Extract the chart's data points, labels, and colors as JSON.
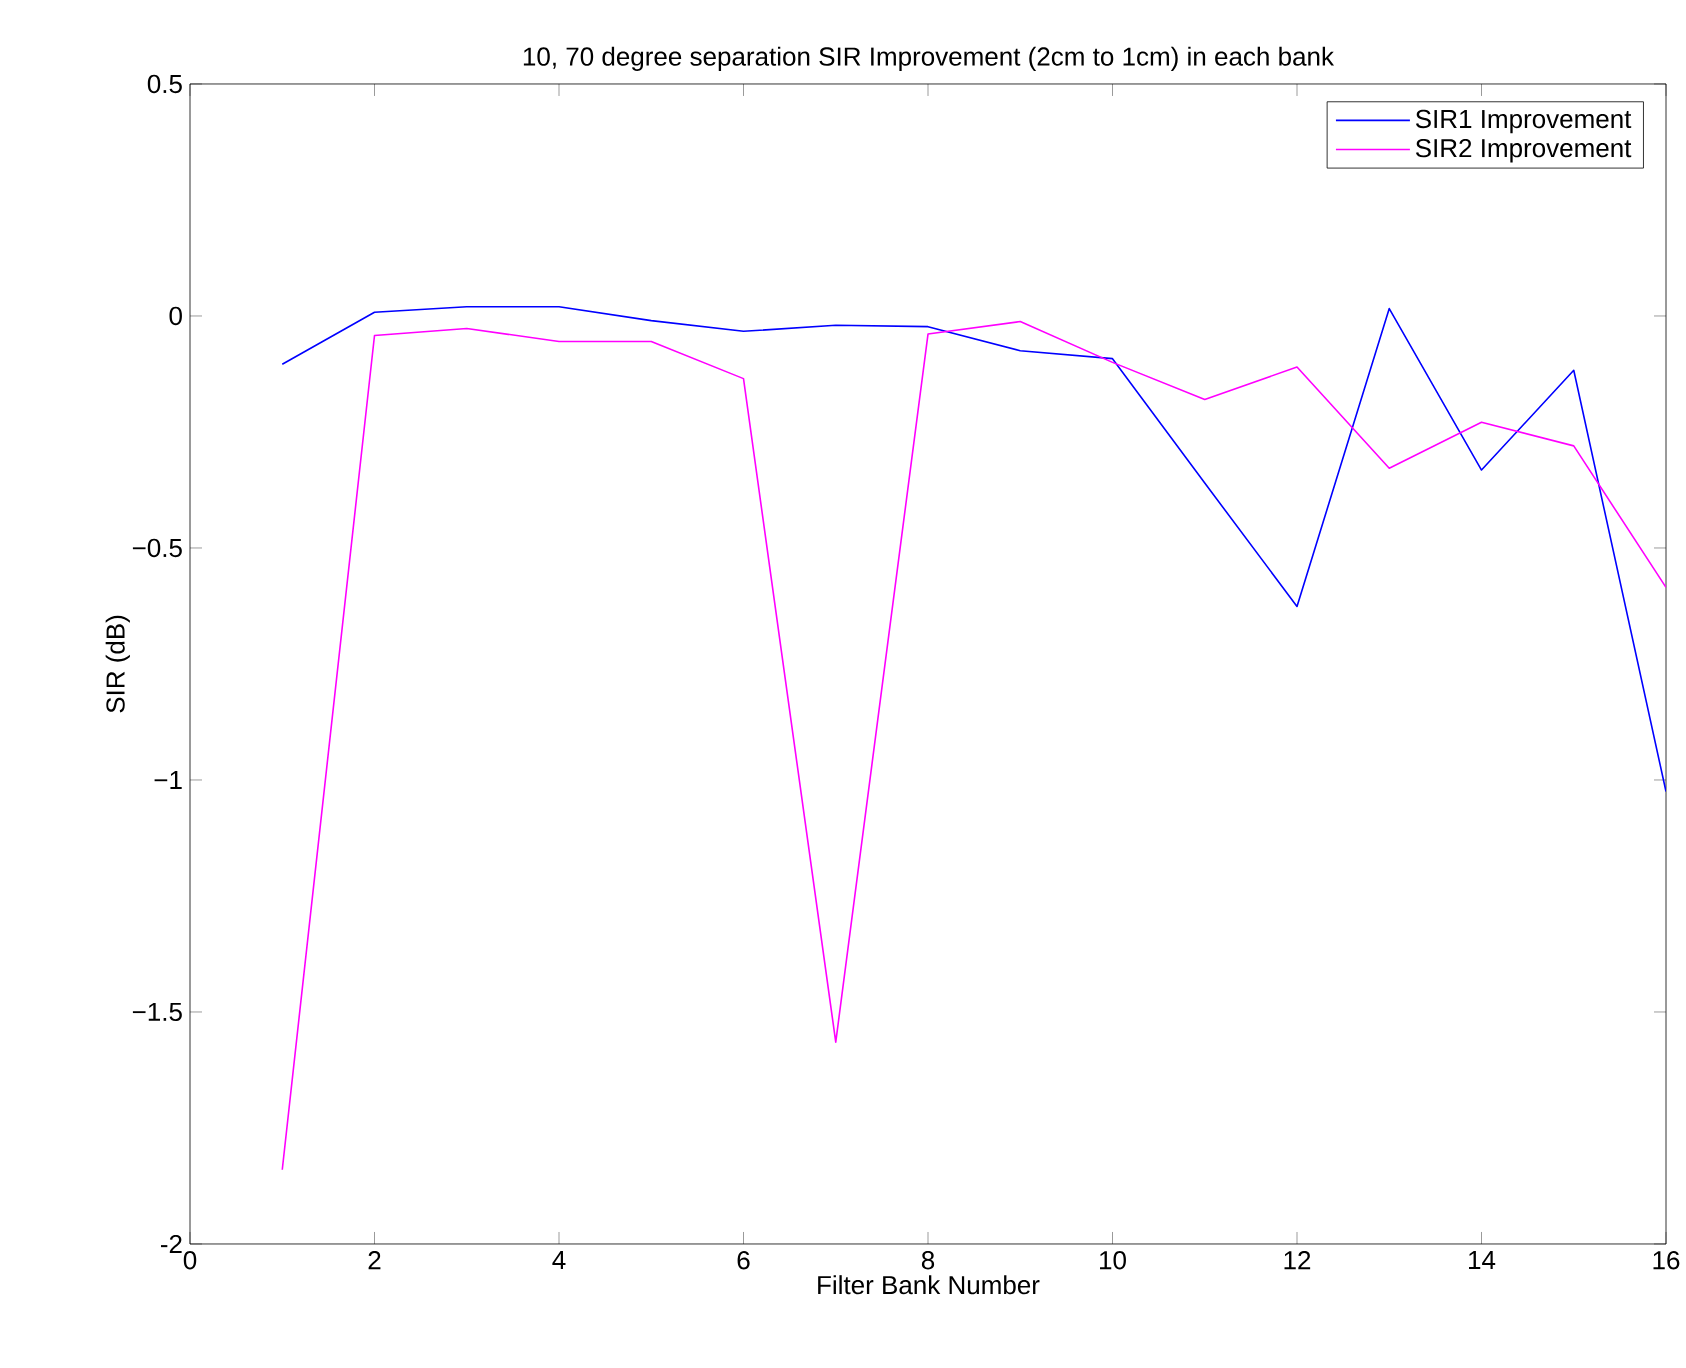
{
  "chart_data": {
    "type": "line",
    "title": "10, 70 degree separation SIR Improvement (2cm to 1cm) in each bank",
    "xlabel": "Filter Bank Number",
    "ylabel": "SIR (dB)",
    "x": [
      1,
      2,
      3,
      4,
      5,
      6,
      7,
      8,
      9,
      10,
      11,
      12,
      13,
      14,
      15,
      16
    ],
    "series": [
      {
        "name": "SIR1 Improvement",
        "color": "#0000ff",
        "values": [
          -0.104,
          0.008,
          0.02,
          0.02,
          -0.01,
          -0.033,
          -0.02,
          -0.023,
          -0.075,
          -0.092,
          -0.36,
          -0.626,
          0.016,
          -0.332,
          -0.117,
          -1.025
        ]
      },
      {
        "name": "SIR2 Improvement",
        "color": "#ff00ff",
        "values": [
          -1.84,
          -0.042,
          -0.027,
          -0.055,
          -0.055,
          -0.135,
          -1.565,
          -0.039,
          -0.012,
          -0.1,
          -0.18,
          -0.11,
          -0.328,
          -0.229,
          -0.28,
          -0.585
        ]
      }
    ],
    "xlim": [
      0,
      16
    ],
    "ylim": [
      -2,
      0.5
    ],
    "xticks": [
      0,
      2,
      4,
      6,
      8,
      10,
      12,
      14,
      16
    ],
    "yticks": [
      -2,
      {
        "value": -1.5,
        "label": "−1.5"
      },
      {
        "value": -1,
        "label": "−1"
      },
      {
        "value": -0.5,
        "label": "−0.5"
      },
      0,
      0.5
    ],
    "grid": false,
    "legend": "top right",
    "marker": "none",
    "line_style": "solid"
  }
}
